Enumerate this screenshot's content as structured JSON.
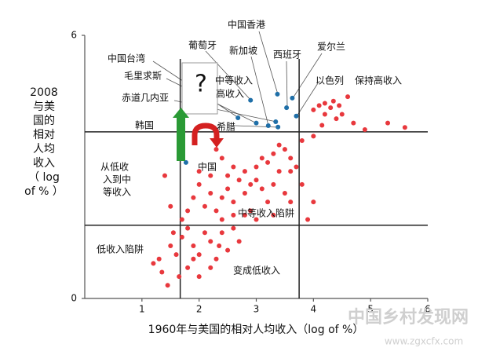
{
  "chart_data": {
    "type": "scatter",
    "xlabel": "1960年与美国的相对人均收入（log of %）",
    "ylabel": [
      "2008",
      "与美",
      "国的",
      "相对",
      "人均",
      "收入",
      "（ log",
      "of % ）"
    ],
    "xlim": [
      0,
      6
    ],
    "ylim": [
      0,
      6
    ],
    "xticks": [
      1,
      2,
      3,
      4,
      5,
      6
    ],
    "yticks": [
      0,
      6
    ],
    "hlines": [
      3.8,
      1.67
    ],
    "vlines": [
      1.67,
      3.75
    ],
    "series": [
      {
        "color": "#e8383d",
        "x": [
          4.0,
          4.1,
          4.2,
          4.3,
          4.35,
          4.45,
          4.6,
          4.5,
          4.2,
          4.4,
          4.15,
          4.7,
          5.3,
          5.6,
          4.9,
          4.0,
          3.8,
          2.3,
          2.4,
          2.6,
          2.8,
          3.0,
          3.1,
          3.3,
          3.4,
          3.5,
          3.6,
          3.7,
          3.6,
          3.4,
          3.2,
          3.0,
          2.9,
          2.7,
          2.5,
          2.4,
          2.2,
          2.0,
          1.9,
          2.1,
          2.3,
          2.6,
          2.8,
          3.1,
          3.3,
          3.5,
          3.6,
          3.2,
          2.9,
          2.6,
          2.4,
          1.8,
          1.5,
          1.4,
          2.0,
          2.2,
          2.5,
          3.8,
          4.0,
          3.9,
          1.3,
          1.2,
          1.35,
          1.5,
          1.6,
          1.7,
          1.8,
          1.9,
          2.0,
          2.1,
          2.2,
          2.3,
          2.4,
          2.5,
          2.6,
          2.0,
          1.8,
          1.65,
          2.2,
          2.7,
          1.7,
          1.55,
          1.9,
          2.35,
          1.45,
          2.8,
          3.0,
          3.3
        ],
        "values": [
          4.3,
          4.4,
          4.45,
          4.35,
          4.5,
          4.4,
          4.6,
          4.2,
          4.2,
          4.1,
          3.95,
          4.0,
          4.0,
          3.9,
          3.85,
          3.7,
          3.6,
          3.4,
          3.2,
          3.0,
          2.9,
          3.0,
          3.2,
          3.3,
          3.5,
          3.4,
          3.2,
          3.0,
          2.9,
          2.9,
          3.1,
          2.7,
          2.6,
          2.7,
          2.5,
          2.3,
          2.4,
          2.6,
          2.3,
          2.1,
          2.0,
          2.2,
          2.4,
          2.5,
          2.6,
          2.4,
          2.2,
          2.2,
          2.0,
          1.9,
          1.8,
          2.0,
          2.1,
          2.8,
          2.9,
          2.8,
          2.8,
          2.6,
          2.2,
          1.8,
          0.9,
          0.8,
          0.6,
          1.2,
          1.0,
          1.4,
          1.6,
          1.2,
          1.0,
          1.5,
          1.3,
          0.9,
          1.5,
          1.1,
          1.6,
          0.5,
          0.7,
          0.5,
          0.7,
          1.3,
          1.8,
          1.5,
          0.9,
          1.2,
          0.3,
          1.9,
          1.8,
          1.9
        ]
      },
      {
        "color": "#1f6fa8",
        "x": [
          1.77,
          2.68,
          2.9,
          3.0,
          3.21,
          3.34,
          3.37,
          3.38,
          3.53,
          3.63,
          3.7
        ],
        "values": [
          3.1,
          4.12,
          4.52,
          4.0,
          3.94,
          4.03,
          4.66,
          3.91,
          4.35,
          4.57,
          4.16
        ]
      }
    ],
    "annotations": [
      "中国香港",
      "葡萄牙",
      "新加坡",
      "西班牙",
      "爱尔兰",
      "中国台湾",
      "毛里求斯",
      "赤道几内亚",
      "韩国",
      "中等收入",
      "高收入",
      "希腊",
      "以色列",
      "保持高收入",
      "中国",
      [
        "从低收",
        "入到中",
        "等收入"
      ],
      "中等收入陷阱",
      "低收入陷阱",
      "变成低收入",
      "?"
    ],
    "watermark": [
      "中国乡村发现网",
      "www.zgxcfx.com"
    ]
  }
}
